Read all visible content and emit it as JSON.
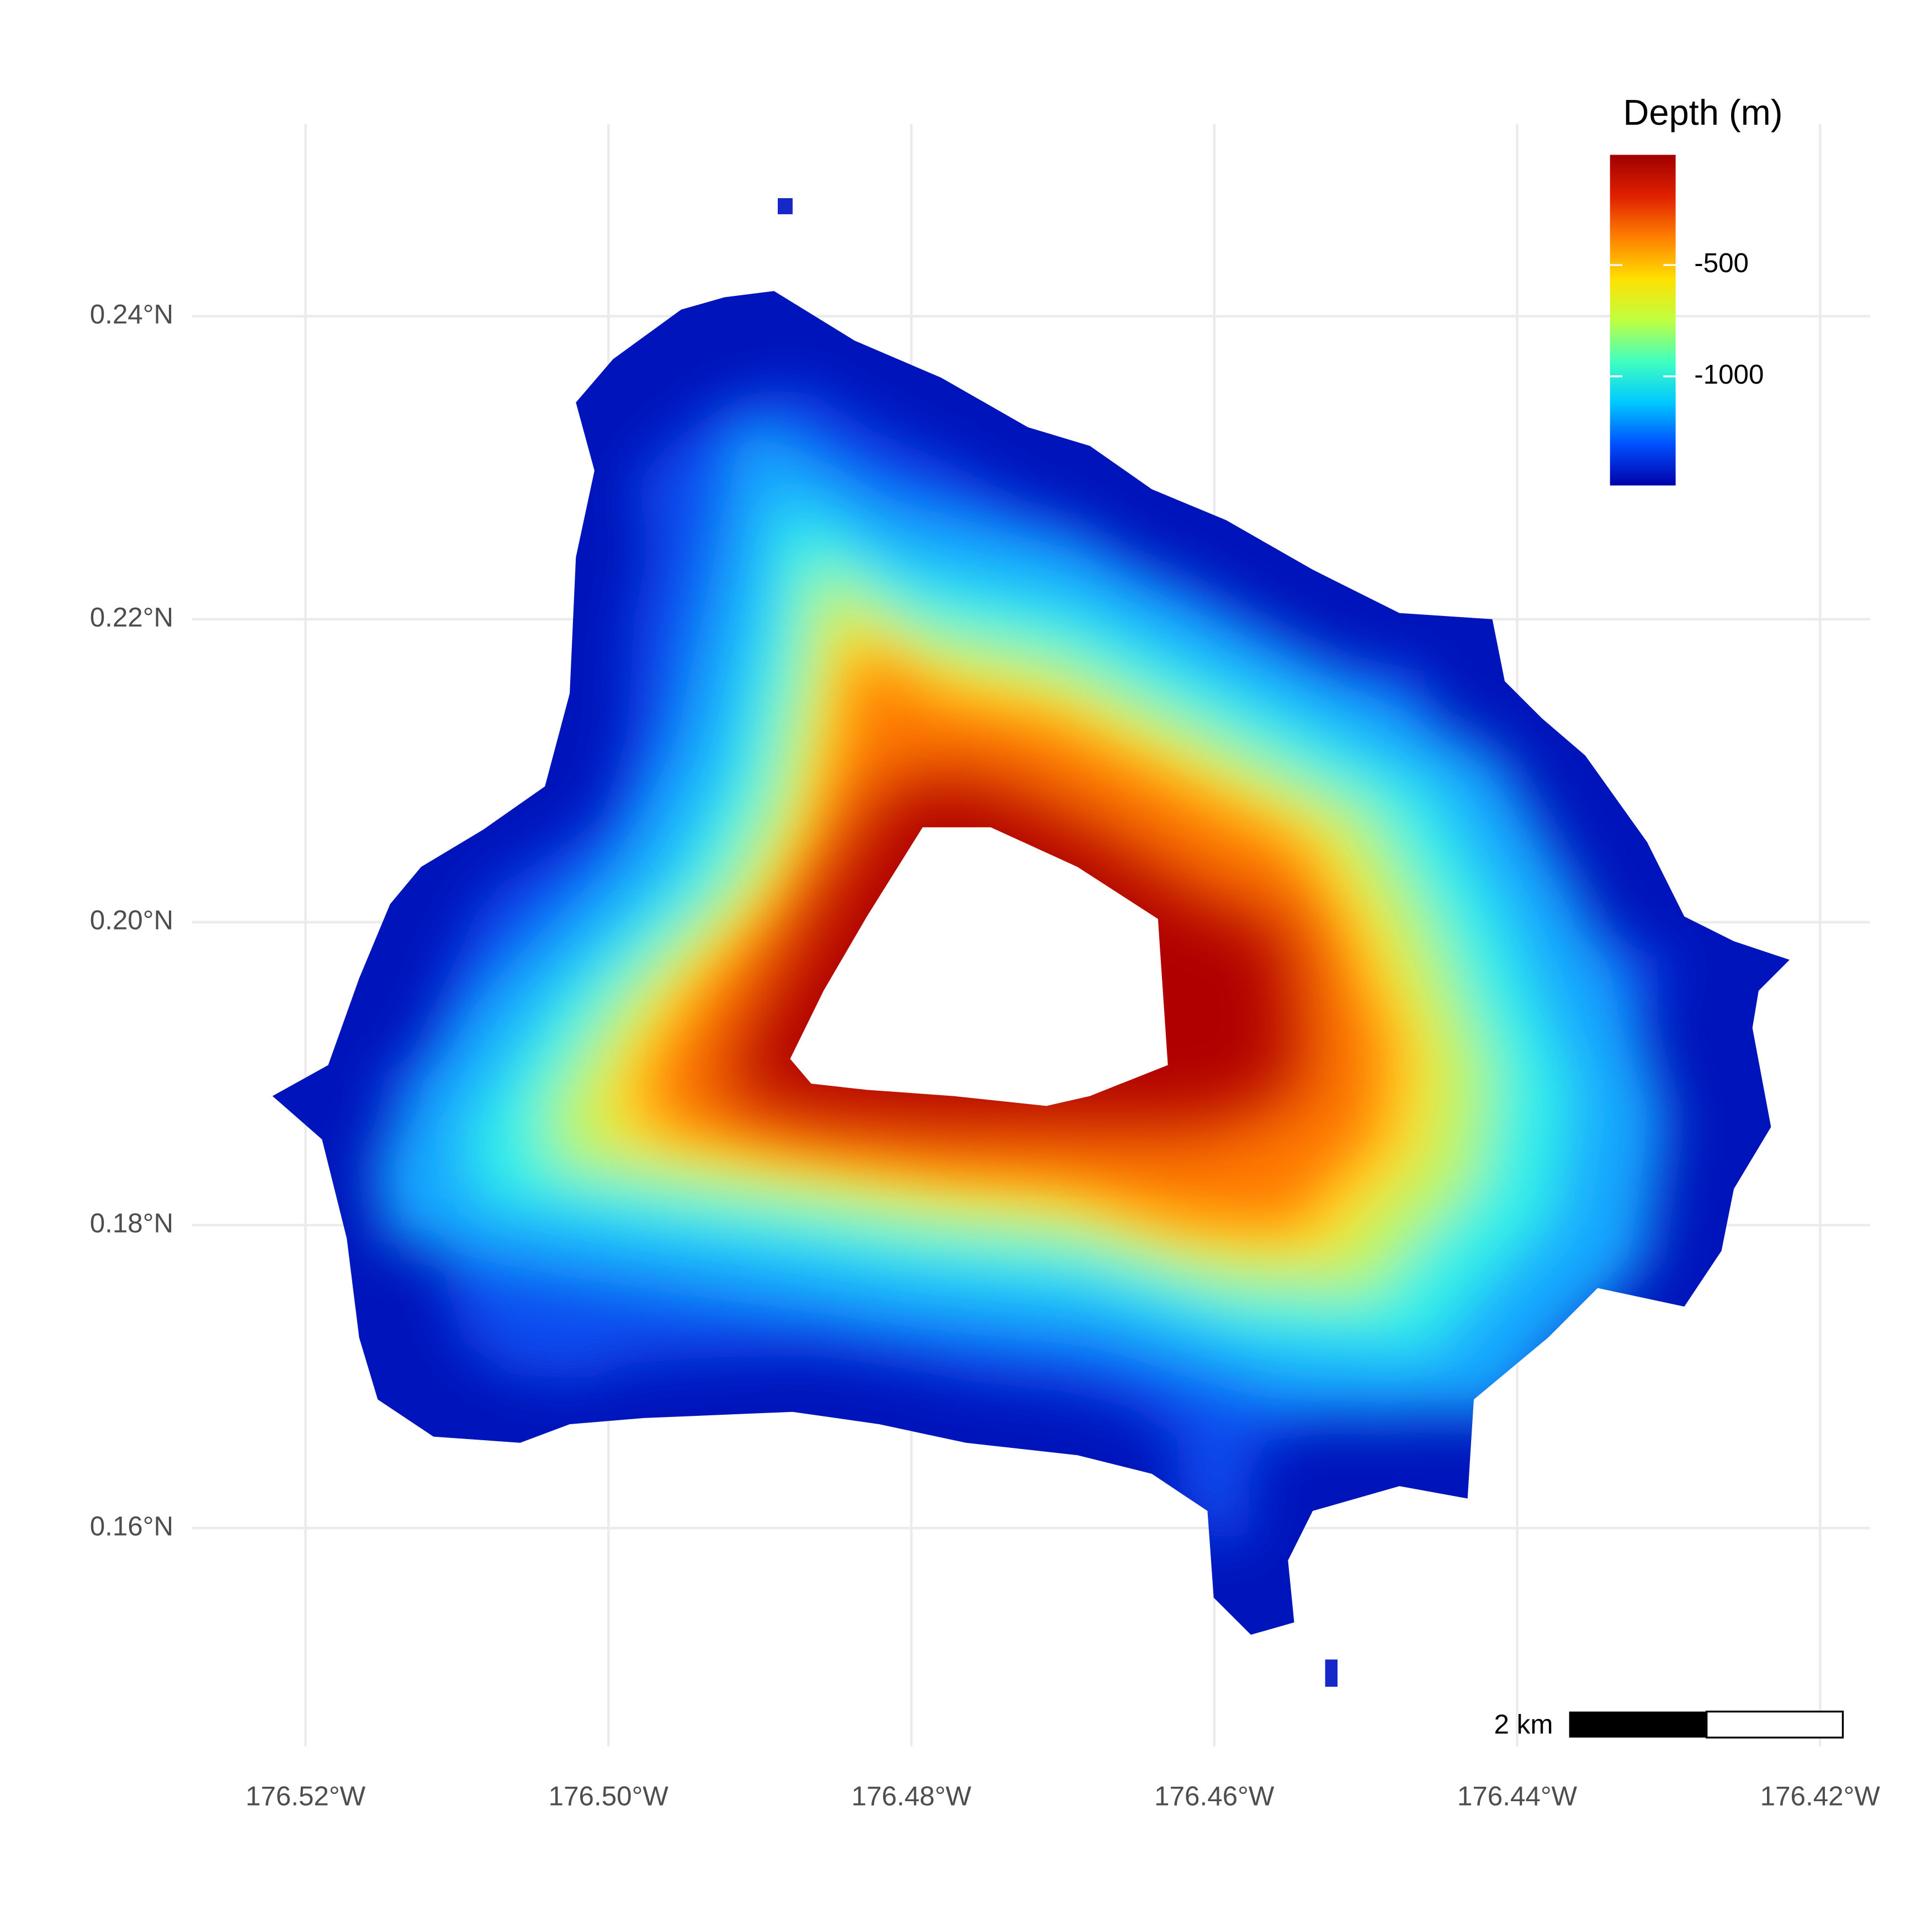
{
  "chart_data": {
    "type": "raster",
    "xlim": [
      -176.5275,
      -176.4167
    ],
    "ylim": [
      0.1456,
      0.2527
    ],
    "xticks": [
      {
        "value": -176.52,
        "label": "176.52°W"
      },
      {
        "value": -176.5,
        "label": "176.50°W"
      },
      {
        "value": -176.48,
        "label": "176.48°W"
      },
      {
        "value": -176.46,
        "label": "176.46°W"
      },
      {
        "value": -176.44,
        "label": "176.44°W"
      },
      {
        "value": -176.42,
        "label": "176.42°W"
      }
    ],
    "yticks": [
      {
        "value": 0.16,
        "label": "0.16°N"
      },
      {
        "value": 0.18,
        "label": "0.18°N"
      },
      {
        "value": 0.2,
        "label": "0.20°N"
      },
      {
        "value": 0.22,
        "label": "0.22°N"
      },
      {
        "value": 0.24,
        "label": "0.24°N"
      }
    ],
    "grid": true,
    "colorbar": {
      "title": "Depth (m)",
      "lim": [
        -1490,
        -5
      ],
      "ticks": [
        -1000,
        -500
      ],
      "colors": [
        "#0000aa",
        "#0050ff",
        "#00c8ff",
        "#40ffc0",
        "#c0ff40",
        "#ffe000",
        "#ff8000",
        "#e02000",
        "#a00000"
      ]
    },
    "scale_bar": "2 km"
  }
}
